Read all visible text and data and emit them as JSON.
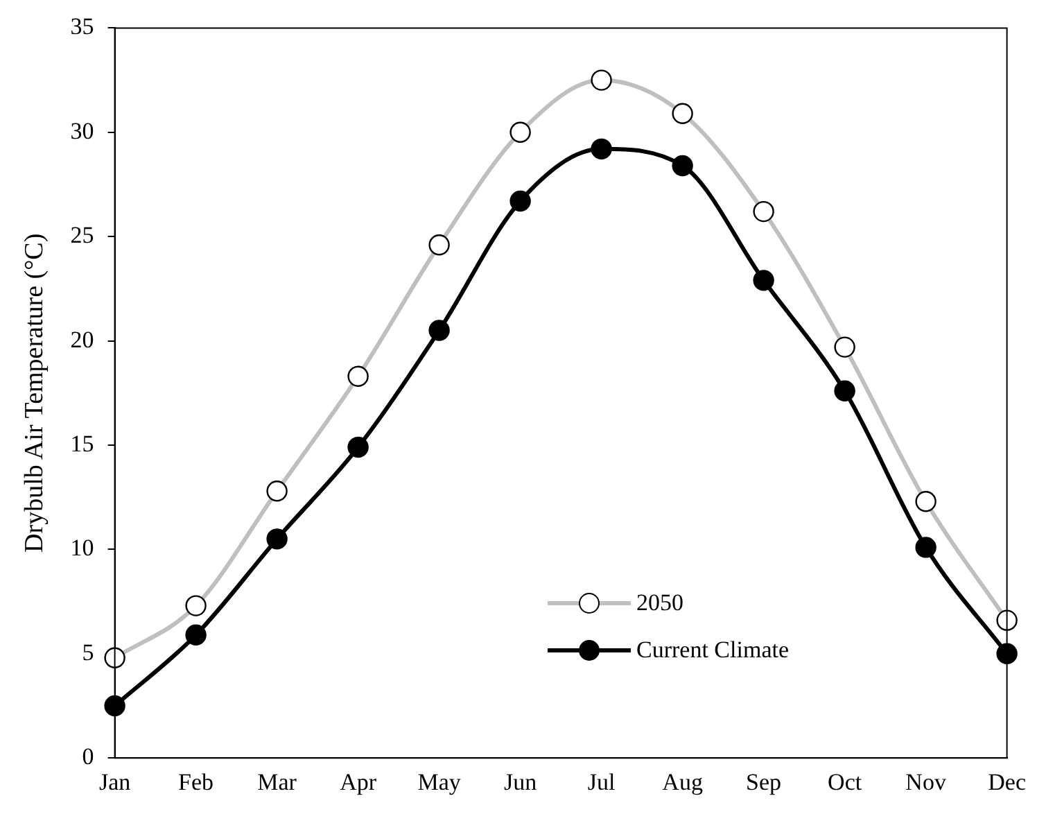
{
  "chart_data": {
    "type": "line",
    "ylabel": "Drybulb Air Temperature (°C)",
    "categories": [
      "Jan",
      "Feb",
      "Mar",
      "Apr",
      "May",
      "Jun",
      "Jul",
      "Aug",
      "Sep",
      "Oct",
      "Nov",
      "Dec"
    ],
    "series": [
      {
        "name": "2050",
        "color": "#bfbfbf",
        "values": [
          4.8,
          7.3,
          12.8,
          18.3,
          24.6,
          30.0,
          32.5,
          30.9,
          26.2,
          19.7,
          12.3,
          6.6
        ]
      },
      {
        "name": "Current Climate",
        "color": "#000000",
        "values": [
          2.5,
          5.9,
          10.5,
          14.9,
          20.5,
          26.7,
          29.2,
          28.4,
          22.9,
          17.6,
          10.1,
          5.0
        ]
      }
    ],
    "ylim": [
      0,
      35
    ],
    "yticks": [
      0,
      5,
      10,
      15,
      20,
      25,
      30,
      35
    ],
    "grid": false,
    "legend": "bottom right",
    "marker": "circle"
  }
}
